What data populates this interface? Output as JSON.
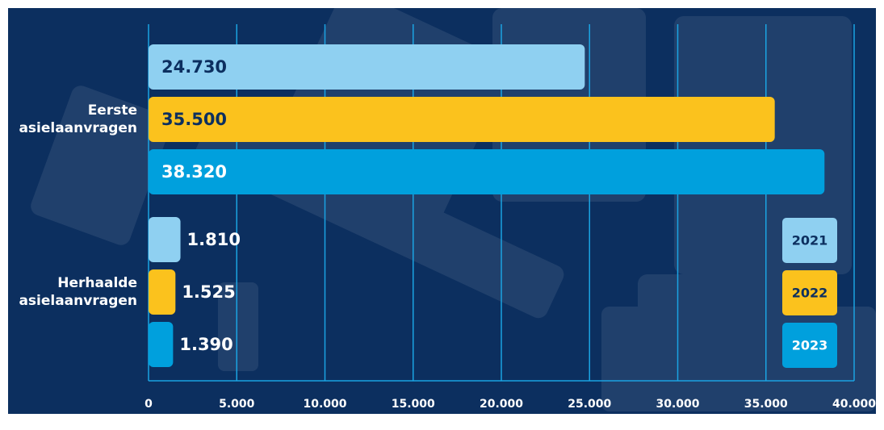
{
  "chart_data": {
    "type": "bar",
    "orientation": "horizontal",
    "categories": [
      "Eerste asielaanvragen",
      "Herhaalde asielaanvragen"
    ],
    "series": [
      {
        "name": "2021",
        "color": "#8fd0f1",
        "values": [
          24730,
          1810
        ],
        "value_labels": [
          "24.730",
          "1.810"
        ]
      },
      {
        "name": "2022",
        "color": "#fbc21d",
        "values": [
          35500,
          1525
        ],
        "value_labels": [
          "35.500",
          "1.525"
        ]
      },
      {
        "name": "2023",
        "color": "#00a0dd",
        "values": [
          38320,
          1390
        ],
        "value_labels": [
          "38.320",
          "1.390"
        ]
      }
    ],
    "xlim": [
      0,
      40000
    ],
    "xticks": [
      0,
      {
        "value": 5000,
        "label": "5.000"
      },
      {
        "value": 10000,
        "label": "10.000"
      },
      {
        "value": 15000,
        "label": "15.000"
      },
      {
        "value": 20000,
        "label": "20.000"
      },
      {
        "value": 25000,
        "label": "25.000"
      },
      {
        "value": 30000,
        "label": "30.000"
      },
      {
        "value": 35000,
        "label": "35.000"
      },
      {
        "value": 40000,
        "label": "40.000"
      }
    ],
    "grid": true,
    "legend": "right"
  }
}
